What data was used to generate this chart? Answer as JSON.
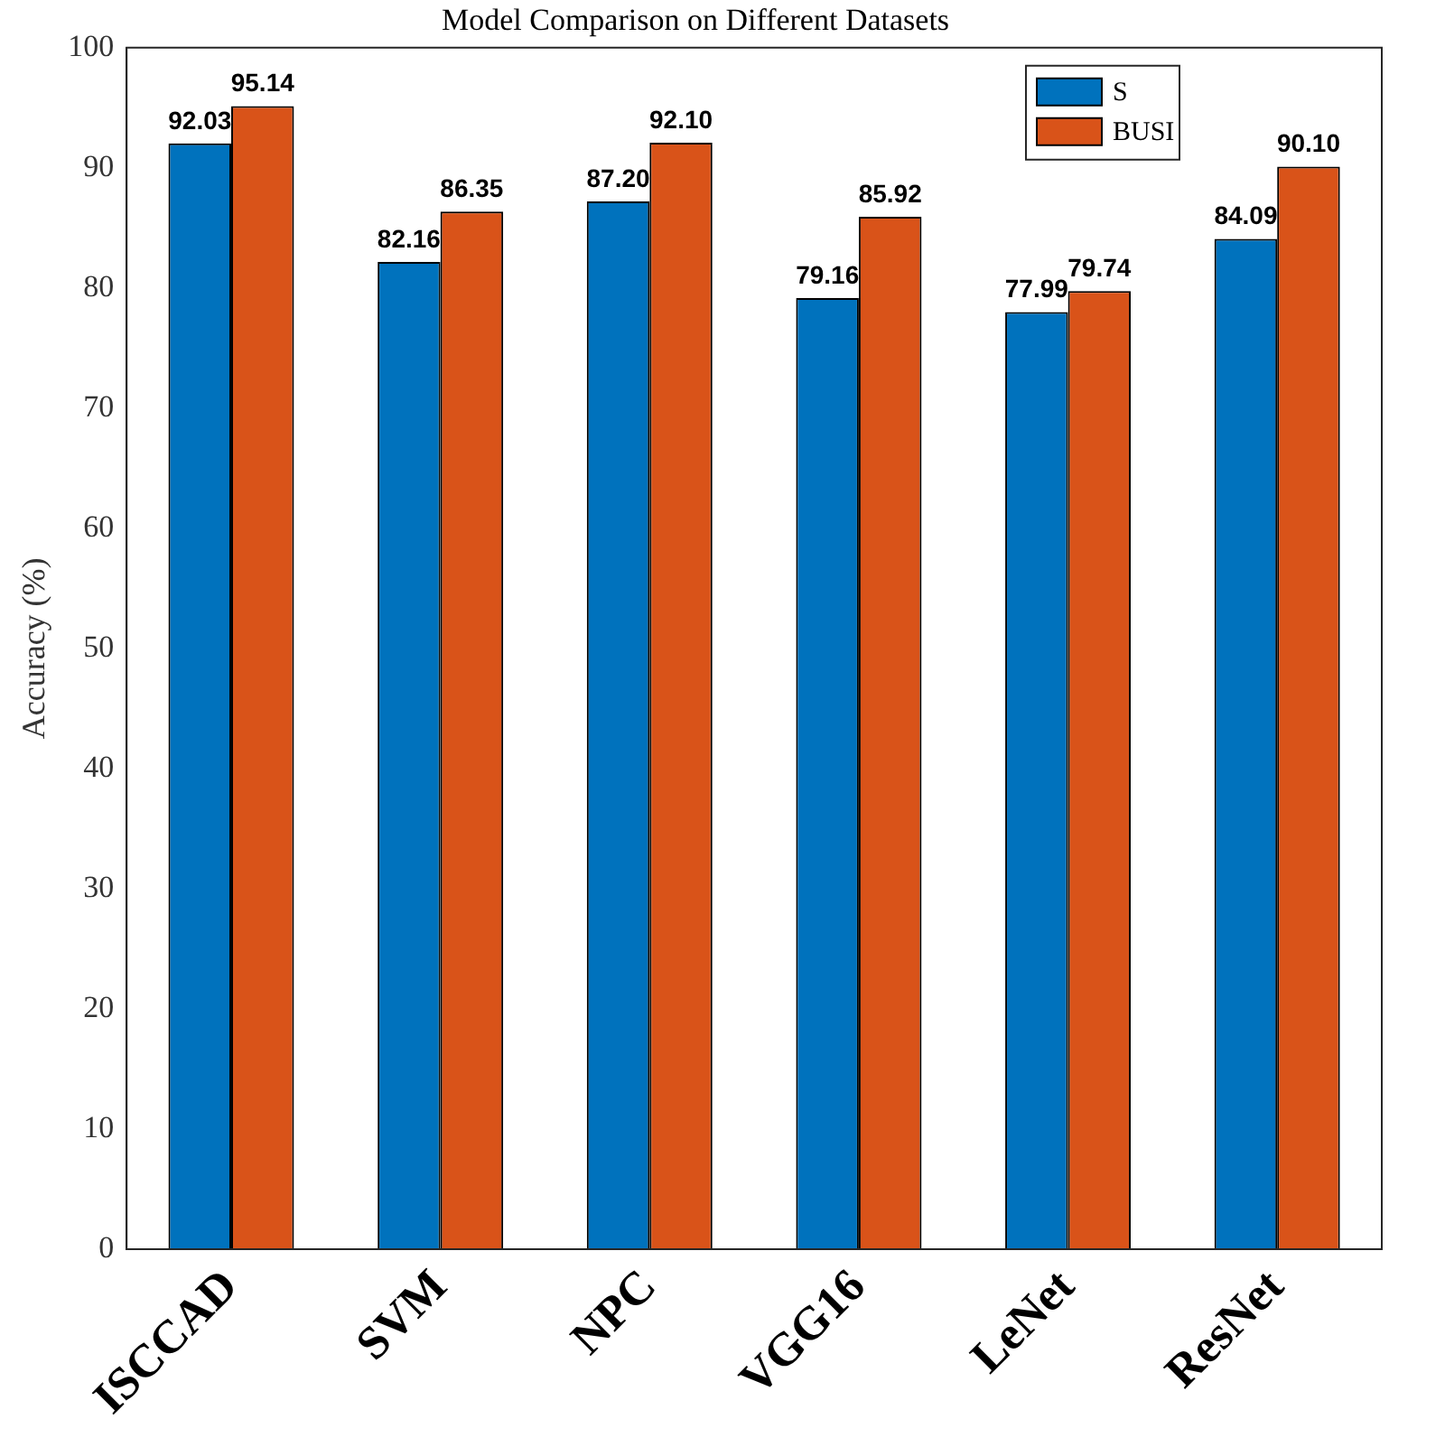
{
  "chart_data": {
    "type": "bar",
    "title": "Model Comparison on Different Datasets",
    "ylabel": "Accuracy (%)",
    "categories": [
      "ISCCAD",
      "SVM",
      "NPC",
      "VGG16",
      "LeNet",
      "ResNet"
    ],
    "series": [
      {
        "name": "S",
        "color": "#0072bd",
        "values": [
          92.03,
          82.16,
          87.2,
          79.16,
          77.99,
          84.09
        ],
        "value_labels": [
          "92.03",
          "82.16",
          "87.20",
          "79.16",
          "77.99",
          "84.09"
        ]
      },
      {
        "name": "BUSI",
        "color": "#d95319",
        "values": [
          95.14,
          86.35,
          92.1,
          85.92,
          79.74,
          90.1
        ],
        "value_labels": [
          "95.14",
          "86.35",
          "92.10",
          "85.92",
          "79.74",
          "90.10"
        ]
      }
    ],
    "ylim": [
      0,
      100
    ],
    "yticks": [
      0,
      10,
      20,
      30,
      40,
      50,
      60,
      70,
      80,
      90,
      100
    ],
    "grid": false,
    "legend": "top right"
  }
}
